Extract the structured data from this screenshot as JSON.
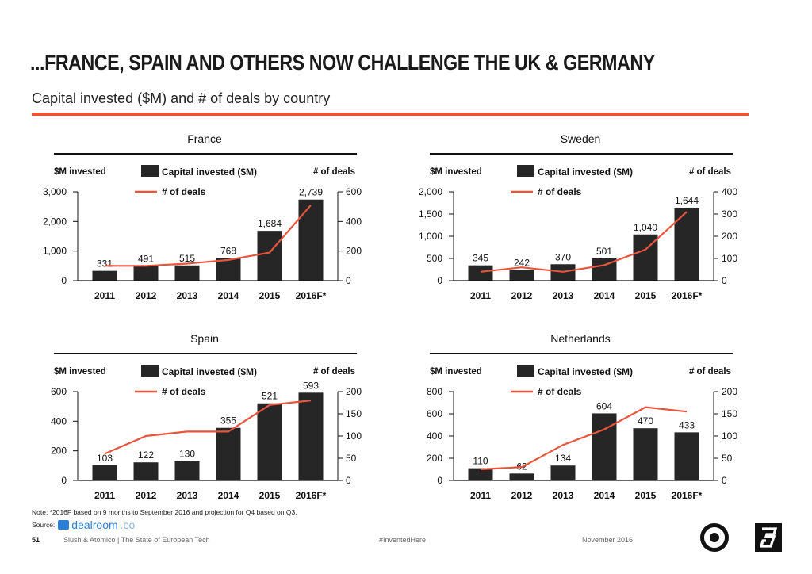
{
  "header": {
    "title": "...FRANCE, SPAIN AND OTHERS NOW CHALLENGE THE UK & GERMANY",
    "subtitle": "Capital invested ($M) and # of deals by country"
  },
  "colors": {
    "accent": "#e8553c",
    "bar": "#262626",
    "line": "#e8553c"
  },
  "chart_data": [
    {
      "type": "bar",
      "title": "France",
      "ylabel_left": "$M invested",
      "ylabel_right": "# of deals",
      "legend": [
        "Capital invested ($M)",
        "# of deals"
      ],
      "categories": [
        "2011",
        "2012",
        "2013",
        "2014",
        "2015",
        "2016F*"
      ],
      "series": [
        {
          "name": "Capital invested ($M)",
          "axis": "left",
          "values": [
            331,
            491,
            515,
            768,
            1684,
            2739
          ]
        },
        {
          "name": "# of deals",
          "axis": "right",
          "type": "line",
          "values": [
            100,
            100,
            115,
            140,
            190,
            510
          ]
        }
      ],
      "value_labels": [
        "331",
        "491",
        "515",
        "768",
        "1,684",
        "2,739"
      ],
      "ylim_left": [
        0,
        3000
      ],
      "yticks_left": [
        "0",
        "1,000",
        "2,000",
        "3,000"
      ],
      "ylim_right": [
        0,
        600
      ],
      "yticks_right": [
        "0",
        "200",
        "400",
        "600"
      ]
    },
    {
      "type": "bar",
      "title": "Sweden",
      "ylabel_left": "$M invested",
      "ylabel_right": "# of deals",
      "legend": [
        "Capital invested ($M)",
        "# of deals"
      ],
      "categories": [
        "2011",
        "2012",
        "2013",
        "2014",
        "2015",
        "2016F*"
      ],
      "series": [
        {
          "name": "Capital invested ($M)",
          "axis": "left",
          "values": [
            345,
            242,
            370,
            501,
            1040,
            1644
          ]
        },
        {
          "name": "# of deals",
          "axis": "right",
          "type": "line",
          "values": [
            40,
            60,
            40,
            70,
            140,
            310
          ]
        }
      ],
      "value_labels": [
        "345",
        "242",
        "370",
        "501",
        "1,040",
        "1,644"
      ],
      "ylim_left": [
        0,
        2000
      ],
      "yticks_left": [
        "0",
        "500",
        "1,000",
        "1,500",
        "2,000"
      ],
      "ylim_right": [
        0,
        400
      ],
      "yticks_right": [
        "0",
        "100",
        "200",
        "300",
        "400"
      ]
    },
    {
      "type": "bar",
      "title": "Spain",
      "ylabel_left": "$M invested",
      "ylabel_right": "# of deals",
      "legend": [
        "Capital invested ($M)",
        "# of deals"
      ],
      "categories": [
        "2011",
        "2012",
        "2013",
        "2014",
        "2015",
        "2016F*"
      ],
      "series": [
        {
          "name": "Capital invested ($M)",
          "axis": "left",
          "values": [
            103,
            122,
            130,
            355,
            521,
            593
          ]
        },
        {
          "name": "# of deals",
          "axis": "right",
          "type": "line",
          "values": [
            60,
            100,
            110,
            110,
            170,
            180
          ]
        }
      ],
      "value_labels": [
        "103",
        "122",
        "130",
        "355",
        "521",
        "593"
      ],
      "ylim_left": [
        0,
        600
      ],
      "yticks_left": [
        "0",
        "200",
        "400",
        "600"
      ],
      "ylim_right": [
        0,
        200
      ],
      "yticks_right": [
        "0",
        "50",
        "100",
        "150",
        "200"
      ]
    },
    {
      "type": "bar",
      "title": "Netherlands",
      "ylabel_left": "$M invested",
      "ylabel_right": "# of deals",
      "legend": [
        "Capital invested ($M)",
        "# of deals"
      ],
      "categories": [
        "2011",
        "2012",
        "2013",
        "2014",
        "2015",
        "2016F*"
      ],
      "series": [
        {
          "name": "Capital invested ($M)",
          "axis": "left",
          "values": [
            110,
            62,
            134,
            604,
            470,
            433
          ]
        },
        {
          "name": "# of deals",
          "axis": "right",
          "type": "line",
          "values": [
            25,
            30,
            80,
            115,
            165,
            155
          ]
        }
      ],
      "value_labels": [
        "110",
        "62",
        "134",
        "604",
        "470",
        "433"
      ],
      "ylim_left": [
        0,
        800
      ],
      "yticks_left": [
        "0",
        "200",
        "400",
        "600",
        "800"
      ],
      "ylim_right": [
        0,
        200
      ],
      "yticks_right": [
        "0",
        "50",
        "100",
        "150",
        "200"
      ]
    }
  ],
  "footer": {
    "note": "Note: *2016F based on 9 months to September 2016 and projection for Q4 based on Q3.",
    "source_label": "Source:",
    "source_name": "dealroom",
    "source_suffix": ".co",
    "page_number": "51",
    "publisher": "Slush & Atomico | The State of European Tech",
    "hashtag": "#InventedHere",
    "date": "November 2016"
  }
}
